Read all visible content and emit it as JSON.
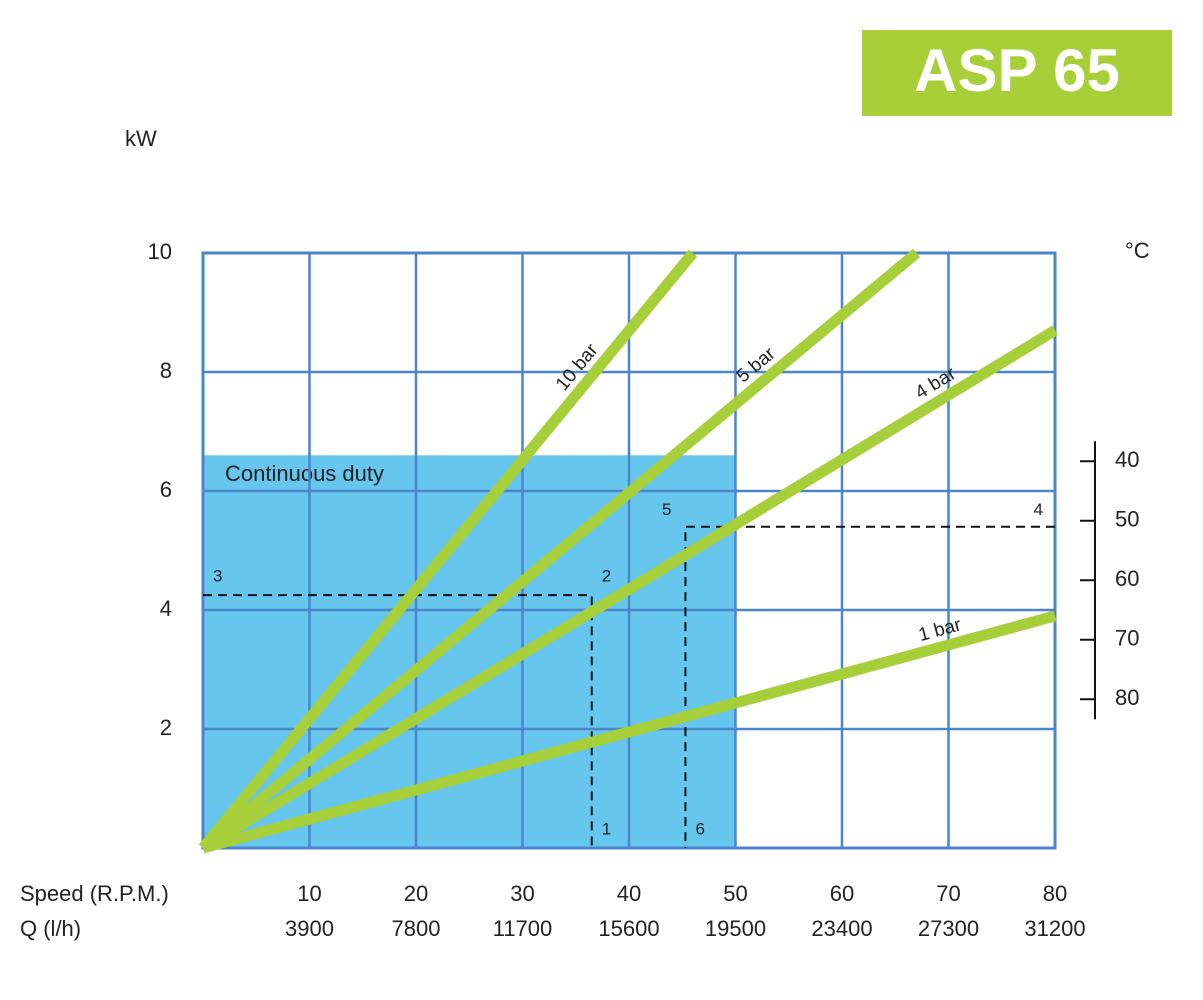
{
  "chart_data": {
    "type": "line",
    "badge": "ASP 65",
    "ylabel": "kW",
    "y2label": "°C",
    "xlabel": "Speed (R.P.M.)",
    "x2label": "Q (l/h)",
    "xlim": [
      0,
      80
    ],
    "ylim": [
      0,
      10
    ],
    "y2lim": [
      105,
      5
    ],
    "xticks": [
      10,
      20,
      30,
      40,
      50,
      60,
      70,
      80
    ],
    "qticks": [
      3900,
      7800,
      11700,
      15600,
      19500,
      23400,
      27300,
      31200
    ],
    "yticks": [
      2,
      4,
      6,
      8,
      10
    ],
    "y2ticks": [
      40,
      50,
      60,
      70,
      80
    ],
    "grid": true,
    "grid_color": "#4a86c8",
    "series": [
      {
        "name": "10 bar",
        "color": "#a6cf3a",
        "x": [
          0,
          46
        ],
        "values": [
          0,
          10
        ]
      },
      {
        "name": "5 bar",
        "color": "#a6cf3a",
        "x": [
          0,
          67
        ],
        "values": [
          0,
          10
        ]
      },
      {
        "name": "4 bar",
        "color": "#a6cf3a",
        "x": [
          0,
          80
        ],
        "values": [
          0,
          8.7
        ]
      },
      {
        "name": "1 bar",
        "color": "#a6cf3a",
        "x": [
          0,
          80
        ],
        "values": [
          0,
          3.9
        ]
      }
    ],
    "regions": [
      {
        "label": "Continuous duty",
        "x": [
          0,
          50
        ],
        "y": [
          0,
          6.6
        ],
        "color": "#66c6ee"
      }
    ],
    "markers": [
      {
        "label": "1",
        "x": 36.5,
        "y": 0
      },
      {
        "label": "2",
        "x": 36.5,
        "y": 4.25
      },
      {
        "label": "3",
        "x": 0,
        "y": 4.25
      },
      {
        "label": "4",
        "x": 80,
        "y": 5.4
      },
      {
        "label": "5",
        "x": 45.3,
        "y": 5.4
      },
      {
        "label": "6",
        "x": 45.3,
        "y": 0
      }
    ]
  }
}
